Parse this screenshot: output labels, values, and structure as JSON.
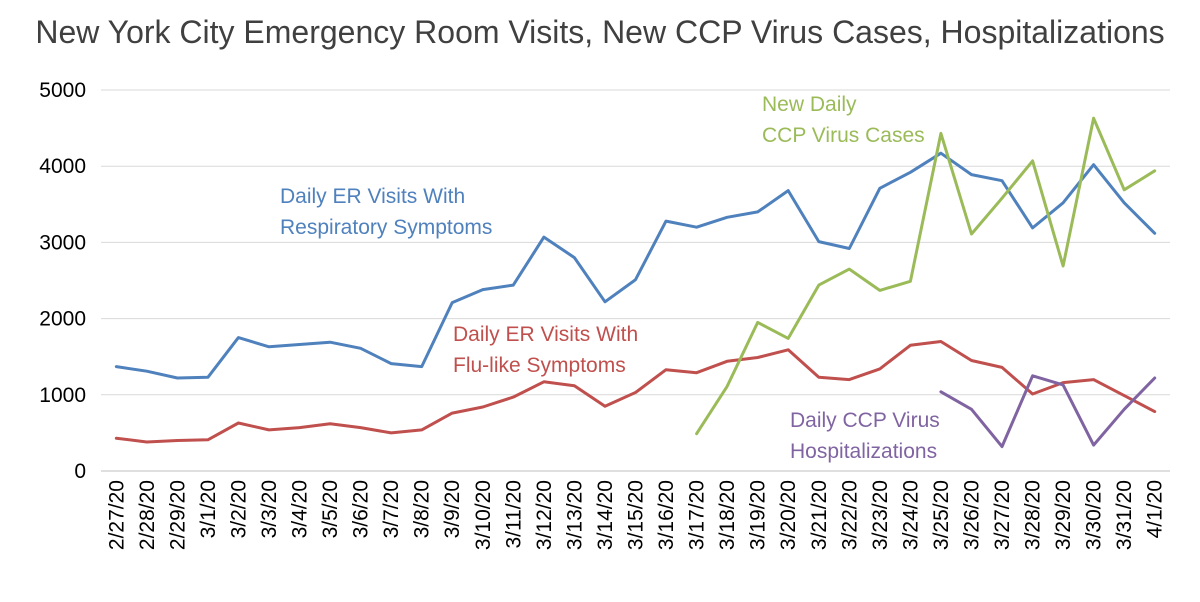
{
  "chart_data": {
    "type": "line",
    "title": "New York City Emergency Room Visits, New CCP Virus Cases, Hospitalizations",
    "xlabel": "",
    "ylabel": "",
    "ylim": [
      0,
      5000
    ],
    "yticks": [
      0,
      1000,
      2000,
      3000,
      4000,
      5000
    ],
    "grid": true,
    "legend": "none",
    "categories": [
      "2/27/20",
      "2/28/20",
      "2/29/20",
      "3/1/20",
      "3/2/20",
      "3/3/20",
      "3/4/20",
      "3/5/20",
      "3/6/20",
      "3/7/20",
      "3/8/20",
      "3/9/20",
      "3/10/20",
      "3/11/20",
      "3/12/20",
      "3/13/20",
      "3/14/20",
      "3/15/20",
      "3/16/20",
      "3/17/20",
      "3/18/20",
      "3/19/20",
      "3/20/20",
      "3/21/20",
      "3/22/20",
      "3/23/20",
      "3/24/20",
      "3/25/20",
      "3/26/20",
      "3/27/20",
      "3/28/20",
      "3/29/20",
      "3/30/20",
      "3/31/20",
      "4/1/20"
    ],
    "series": [
      {
        "name": "Daily ER Visits With Respiratory Symptoms",
        "color": "#4f81bd",
        "values": [
          1370,
          1310,
          1220,
          1230,
          1750,
          1630,
          1660,
          1690,
          1610,
          1410,
          1370,
          2210,
          2380,
          2440,
          3070,
          2800,
          2220,
          2510,
          3280,
          3200,
          3330,
          3400,
          3680,
          3010,
          2920,
          3710,
          3920,
          4170,
          3890,
          3810,
          3190,
          3520,
          4020,
          3520,
          3120
        ]
      },
      {
        "name": "Daily ER Visits With Flu-like Symptoms",
        "color": "#c0504d",
        "values": [
          430,
          380,
          400,
          410,
          630,
          540,
          570,
          620,
          570,
          500,
          540,
          760,
          840,
          970,
          1170,
          1120,
          850,
          1030,
          1330,
          1290,
          1440,
          1490,
          1590,
          1230,
          1200,
          1340,
          1650,
          1700,
          1450,
          1360,
          1010,
          1160,
          1200,
          990,
          780
        ]
      },
      {
        "name": "New Daily CCP Virus Cases",
        "color": "#9bbb59",
        "values": [
          null,
          null,
          null,
          null,
          null,
          null,
          null,
          null,
          null,
          null,
          null,
          null,
          null,
          null,
          null,
          null,
          null,
          null,
          null,
          490,
          1110,
          1950,
          1740,
          2440,
          2650,
          2370,
          2490,
          4430,
          3110,
          3580,
          4070,
          2690,
          4630,
          3690,
          3940
        ]
      },
      {
        "name": "Daily CCP Virus Hospitalizations",
        "color": "#8064a2",
        "values": [
          null,
          null,
          null,
          null,
          null,
          null,
          null,
          null,
          null,
          null,
          null,
          null,
          null,
          null,
          null,
          null,
          null,
          null,
          null,
          null,
          null,
          null,
          null,
          null,
          null,
          null,
          null,
          1040,
          810,
          320,
          1250,
          1130,
          340,
          810,
          1220
        ]
      }
    ],
    "annotations": [
      {
        "lines": [
          "Daily ER Visits With",
          "Respiratory Symptoms"
        ],
        "color": "#4f81bd"
      },
      {
        "lines": [
          "New Daily",
          "CCP Virus Cases"
        ],
        "color": "#9bbb59"
      },
      {
        "lines": [
          "Daily ER Visits With",
          "Flu-like Symptoms"
        ],
        "color": "#c0504d"
      },
      {
        "lines": [
          "Daily CCP Virus",
          "Hospitalizations"
        ],
        "color": "#8064a2"
      }
    ]
  }
}
